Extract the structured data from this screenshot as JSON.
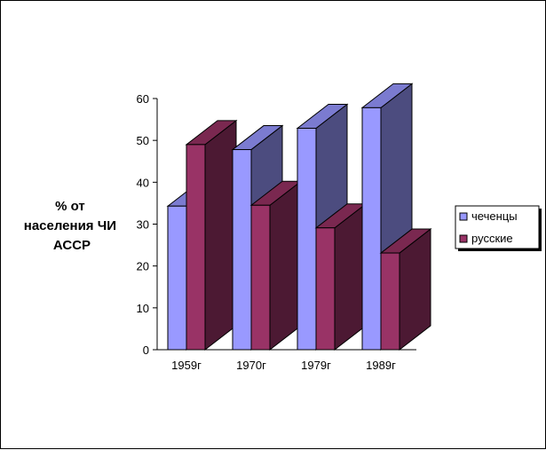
{
  "chart_data": {
    "type": "bar",
    "style": "3d-clustered-column",
    "categories": [
      "1959г",
      "1970г",
      "1979г",
      "1989г"
    ],
    "series": [
      {
        "name": "чеченцы",
        "values": [
          34.3,
          47.8,
          52.9,
          57.8
        ],
        "color": "#9999ff",
        "side_color": "#4c4c7f",
        "top_color": "#7b7bd0"
      },
      {
        "name": "русские",
        "values": [
          49.0,
          34.5,
          29.1,
          23.1
        ],
        "color": "#993366",
        "side_color": "#4c1933",
        "top_color": "#7a2850"
      }
    ],
    "title": "",
    "xlabel": "",
    "ylabel": [
      "% от",
      "населения ЧИ",
      "АССР"
    ],
    "ylim": [
      0,
      60
    ],
    "yticks": [
      0,
      10,
      20,
      30,
      40,
      50,
      60
    ],
    "grid": false,
    "legend": "right"
  }
}
